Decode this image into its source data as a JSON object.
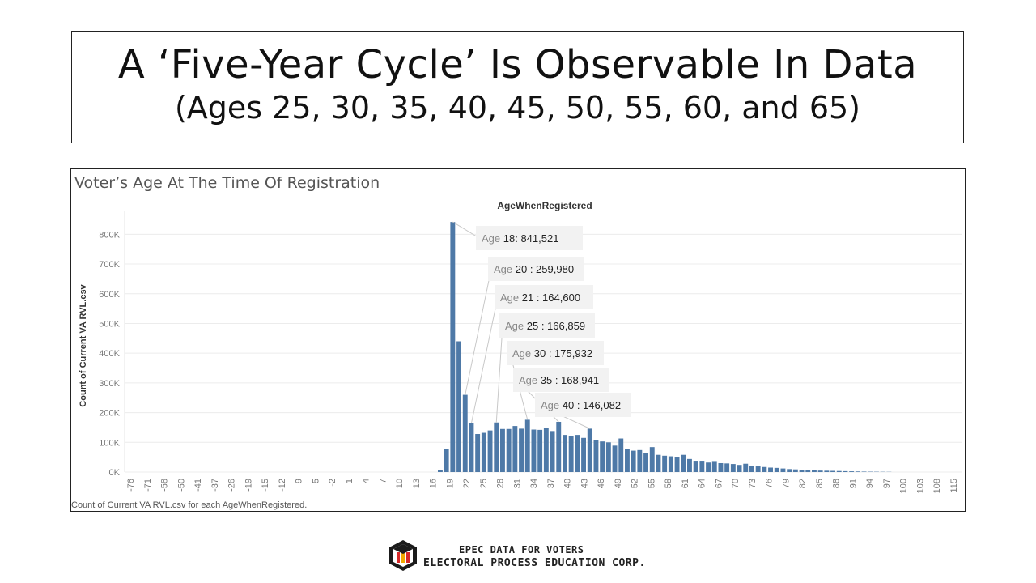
{
  "slide": {
    "title": "A ‘Five-Year Cycle’ Is Observable In Data",
    "subtitle": "(Ages 25, 30, 35, 40, 45, 50, 55, 60, and 65)"
  },
  "footer": {
    "line1": "EPEC DATA FOR VOTERS",
    "line2": "ELECTORAL PROCESS EDUCATION CORP."
  },
  "colors": {
    "bar": "#4e79a7",
    "grid": "#ececec",
    "axis_text": "#777777",
    "callout_bg": "#f2f2f2"
  },
  "chart_data": {
    "type": "bar",
    "title": "Voter’s Age At The Time Of Registration",
    "column_header": "AgeWhenRegistered",
    "ylabel": "Count of Current VA RVL.csv",
    "caption": "Count of Current VA RVL.csv for each AgeWhenRegistered.",
    "ylim": [
      0,
      850000
    ],
    "yticks": [
      0,
      100000,
      200000,
      300000,
      400000,
      500000,
      600000,
      700000,
      800000
    ],
    "ytick_labels": [
      "0K",
      "100K",
      "200K",
      "300K",
      "400K",
      "500K",
      "600K",
      "700K",
      "800K"
    ],
    "xlim": [
      -78,
      116
    ],
    "xtick_labels": [
      "-76",
      "-71",
      "-58",
      "-50",
      "-41",
      "-37",
      "-26",
      "-19",
      "-15",
      "-12",
      "-9",
      "-5",
      "-2",
      "1",
      "4",
      "7",
      "10",
      "13",
      "16",
      "19",
      "22",
      "25",
      "28",
      "31",
      "34",
      "37",
      "40",
      "43",
      "46",
      "49",
      "52",
      "55",
      "58",
      "61",
      "64",
      "67",
      "70",
      "73",
      "76",
      "79",
      "82",
      "85",
      "88",
      "91",
      "94",
      "97",
      "100",
      "103",
      "108",
      "115"
    ],
    "grid": true,
    "ages": [
      16,
      17,
      18,
      19,
      20,
      21,
      22,
      23,
      24,
      25,
      26,
      27,
      28,
      29,
      30,
      31,
      32,
      33,
      34,
      35,
      36,
      37,
      38,
      39,
      40,
      41,
      42,
      43,
      44,
      45,
      46,
      47,
      48,
      49,
      50,
      51,
      52,
      53,
      54,
      55,
      56,
      57,
      58,
      59,
      60,
      61,
      62,
      63,
      64,
      65,
      66,
      67,
      68,
      69,
      70,
      71,
      72,
      73,
      74,
      75,
      76,
      77,
      78,
      79,
      80,
      81,
      82,
      83,
      84,
      85,
      86,
      87,
      88
    ],
    "values": [
      8000,
      78000,
      841521,
      440000,
      259980,
      164600,
      128000,
      132000,
      140000,
      166859,
      145000,
      145000,
      155000,
      146000,
      175932,
      143000,
      142000,
      148000,
      138000,
      168941,
      125000,
      122000,
      125000,
      115000,
      146082,
      107000,
      103000,
      100000,
      89000,
      113000,
      77000,
      72000,
      74000,
      63000,
      84000,
      58000,
      55000,
      53000,
      49000,
      58000,
      44000,
      38000,
      38000,
      32000,
      37000,
      30000,
      29000,
      27000,
      24000,
      28000,
      21000,
      19000,
      17000,
      15000,
      14000,
      12000,
      10000,
      9000,
      8000,
      7000,
      6000,
      5000,
      4500,
      4000,
      3500,
      3000,
      2500,
      2000,
      1500,
      1200,
      1000,
      800,
      600
    ],
    "annotations": [
      {
        "label": "Age",
        "age": "18:",
        "value": "841,521"
      },
      {
        "label": "Age",
        "age": "20",
        "value": ": 259,980"
      },
      {
        "label": "Age",
        "age": "21",
        "value": ": 164,600"
      },
      {
        "label": "Age",
        "age": "25",
        "value": ": 166,859"
      },
      {
        "label": "Age",
        "age": "30",
        "value": ": 175,932"
      },
      {
        "label": "Age",
        "age": "35",
        "value": ": 168,941"
      },
      {
        "label": "Age",
        "age": "40",
        "value": ": 146,082"
      }
    ]
  }
}
